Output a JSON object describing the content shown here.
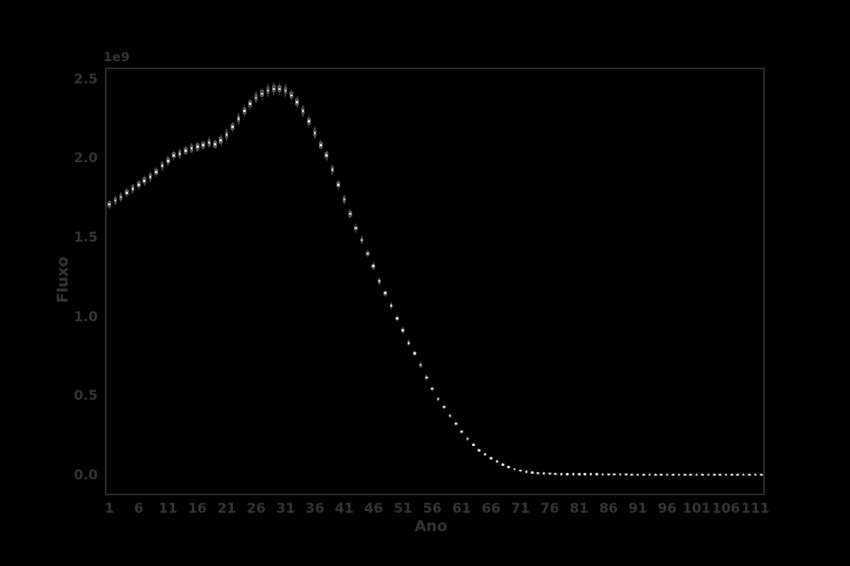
{
  "figure": {
    "background_color": "#000000",
    "spine_color": "#2d2d2d",
    "text_color": "#343434",
    "point_body_color": "#565656",
    "point_whisker_color": "#3d3d3d",
    "point_median_color": "#e8e8e8"
  },
  "chart_data": {
    "type": "boxplot",
    "title": "",
    "xlabel": "Ano",
    "ylabel": "Fluxo",
    "y_offset_text": "1e9",
    "unit_multiplier": 1000000000,
    "legend": "none",
    "grid": "off",
    "xlim": [
      0.26,
      112.63
    ],
    "ylim": [
      -0.128,
      2.575
    ],
    "x_ticks": [
      1,
      6,
      11,
      16,
      21,
      26,
      31,
      36,
      41,
      46,
      51,
      56,
      61,
      66,
      71,
      76,
      81,
      86,
      91,
      96,
      101,
      106,
      111
    ],
    "x_ticklabels": [
      "1",
      "6",
      "11",
      "16",
      "21",
      "26",
      "31",
      "36",
      "41",
      "46",
      "51",
      "56",
      "61",
      "66",
      "71",
      "76",
      "81",
      "86",
      "91",
      "96",
      "101",
      "106",
      "111"
    ],
    "y_ticks": [
      0.0,
      0.5,
      1.0,
      1.5,
      2.0,
      2.5
    ],
    "y_ticklabels": [
      "0.0",
      "0.5",
      "1.0",
      "1.5",
      "2.0",
      "2.5"
    ],
    "x": [
      1,
      2,
      3,
      4,
      5,
      6,
      7,
      8,
      9,
      10,
      11,
      12,
      13,
      14,
      15,
      16,
      17,
      18,
      19,
      20,
      21,
      22,
      23,
      24,
      25,
      26,
      27,
      28,
      29,
      30,
      31,
      32,
      33,
      34,
      35,
      36,
      37,
      38,
      39,
      40,
      41,
      42,
      43,
      44,
      45,
      46,
      47,
      48,
      49,
      50,
      51,
      52,
      53,
      54,
      55,
      56,
      57,
      58,
      59,
      60,
      61,
      62,
      63,
      64,
      65,
      66,
      67,
      68,
      69,
      70,
      71,
      72,
      73,
      74,
      75,
      76,
      77,
      78,
      79,
      80,
      81,
      82,
      83,
      84,
      85,
      86,
      87,
      88,
      89,
      90,
      91,
      92,
      93,
      94,
      95,
      96,
      97,
      98,
      99,
      100,
      101,
      102,
      103,
      104,
      105,
      106,
      107,
      108,
      109,
      110,
      111,
      112
    ],
    "values": [
      1.71,
      1.735,
      1.755,
      1.785,
      1.81,
      1.835,
      1.86,
      1.885,
      1.915,
      1.955,
      1.985,
      2.02,
      2.03,
      2.05,
      2.065,
      2.075,
      2.085,
      2.1,
      2.09,
      2.115,
      2.15,
      2.2,
      2.25,
      2.3,
      2.345,
      2.385,
      2.41,
      2.43,
      2.44,
      2.44,
      2.43,
      2.4,
      2.355,
      2.3,
      2.235,
      2.16,
      2.085,
      2.02,
      1.93,
      1.835,
      1.74,
      1.65,
      1.56,
      1.485,
      1.4,
      1.32,
      1.225,
      1.15,
      1.07,
      0.99,
      0.915,
      0.835,
      0.77,
      0.695,
      0.615,
      0.545,
      0.48,
      0.43,
      0.375,
      0.325,
      0.275,
      0.23,
      0.19,
      0.155,
      0.13,
      0.105,
      0.085,
      0.065,
      0.05,
      0.038,
      0.028,
      0.021,
      0.016,
      0.012,
      0.01,
      0.008,
      0.007,
      0.006,
      0.006,
      0.005,
      0.005,
      0.004,
      0.004,
      0.004,
      0.003,
      0.003,
      0.003,
      0.003,
      0.003,
      0.002,
      0.002,
      0.002,
      0.002,
      0.002,
      0.002,
      0.002,
      0.002,
      0.002,
      0.002,
      0.002,
      0.002,
      0.002,
      0.002,
      0.002,
      0.002,
      0.002,
      0.002,
      0.002,
      0.002,
      0.002,
      0.002,
      0.002
    ],
    "spread": [
      0.031,
      0.031,
      0.031,
      0.032,
      0.032,
      0.032,
      0.032,
      0.033,
      0.033,
      0.034,
      0.034,
      0.034,
      0.034,
      0.035,
      0.035,
      0.035,
      0.035,
      0.035,
      0.035,
      0.035,
      0.036,
      0.036,
      0.037,
      0.037,
      0.038,
      0.038,
      0.039,
      0.039,
      0.039,
      0.039,
      0.039,
      0.038,
      0.038,
      0.037,
      0.037,
      0.036,
      0.035,
      0.034,
      0.033,
      0.032,
      0.031,
      0.03,
      0.029,
      0.028,
      0.027,
      0.027,
      0.025,
      0.025,
      0.024,
      0.023,
      0.022,
      0.021,
      0.02,
      0.02,
      0.019,
      0.018,
      0.017,
      0.017,
      0.016,
      0.016,
      0.015,
      0.015,
      0.014,
      0.014,
      0.013,
      0.013,
      0.013,
      0.013,
      0.013,
      0.012,
      0.012,
      0.012,
      0.012,
      0.012,
      0.012,
      0.012,
      0.012,
      0.012,
      0.012,
      0.012,
      0.012,
      0.012,
      0.012,
      0.012,
      0.012,
      0.012,
      0.012,
      0.012,
      0.012,
      0.012,
      0.012,
      0.012,
      0.012,
      0.012,
      0.012,
      0.012,
      0.012,
      0.012,
      0.012,
      0.012,
      0.012,
      0.012,
      0.012,
      0.012,
      0.012,
      0.012,
      0.012,
      0.012,
      0.012,
      0.012,
      0.012,
      0.012
    ]
  }
}
